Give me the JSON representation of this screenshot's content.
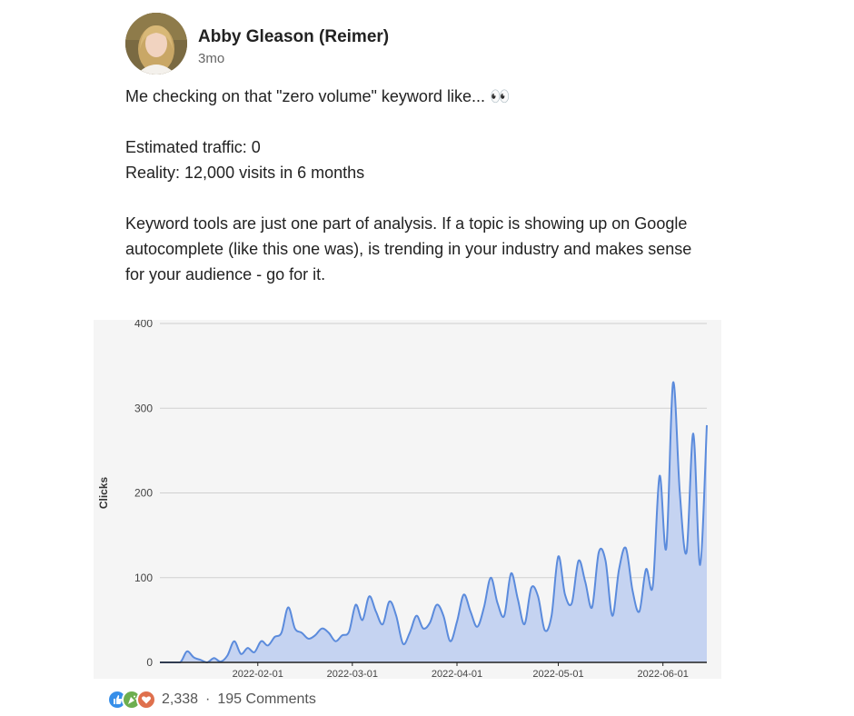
{
  "post": {
    "author": "Abby Gleason (Reimer)",
    "time": "3mo",
    "lines": [
      "Me checking on that \"zero volume\" keyword like... 👀",
      "Estimated traffic: 0",
      "Reality: 12,000 visits in 6 months",
      "Keyword tools are just one part of analysis. If a topic is showing up on Google autocomplete (like this one was), is trending in your industry and makes sense for your audience - go for it."
    ]
  },
  "footer": {
    "reaction_icons": [
      "like-icon",
      "celebrate-icon",
      "love-icon"
    ],
    "reaction_count": "2,338",
    "separator": "·",
    "comments": "195 Comments"
  },
  "chart_data": {
    "type": "area",
    "ylabel": "Clicks",
    "ylim": [
      0,
      400
    ],
    "yticks": [
      0,
      100,
      200,
      300,
      400
    ],
    "xlim": [
      "2022-01-03",
      "2022-06-14"
    ],
    "xticks": [
      "2022-02-01",
      "2022-03-01",
      "2022-04-01",
      "2022-05-01",
      "2022-06-01"
    ],
    "colors": {
      "line": "#5b8bdc",
      "fill": "#c5d3f1",
      "grid": "#d0d0d0"
    },
    "series": [
      {
        "values": [
          [
            "2022-01-03",
            0
          ],
          [
            "2022-01-06",
            0
          ],
          [
            "2022-01-09",
            0
          ],
          [
            "2022-01-11",
            13
          ],
          [
            "2022-01-13",
            6
          ],
          [
            "2022-01-15",
            3
          ],
          [
            "2022-01-17",
            0
          ],
          [
            "2022-01-19",
            5
          ],
          [
            "2022-01-21",
            1
          ],
          [
            "2022-01-23",
            8
          ],
          [
            "2022-01-25",
            25
          ],
          [
            "2022-01-27",
            10
          ],
          [
            "2022-01-29",
            17
          ],
          [
            "2022-01-31",
            12
          ],
          [
            "2022-02-02",
            25
          ],
          [
            "2022-02-04",
            20
          ],
          [
            "2022-02-06",
            30
          ],
          [
            "2022-02-08",
            35
          ],
          [
            "2022-02-10",
            65
          ],
          [
            "2022-02-12",
            40
          ],
          [
            "2022-02-14",
            35
          ],
          [
            "2022-02-16",
            28
          ],
          [
            "2022-02-18",
            32
          ],
          [
            "2022-02-20",
            40
          ],
          [
            "2022-02-22",
            35
          ],
          [
            "2022-02-24",
            25
          ],
          [
            "2022-02-26",
            32
          ],
          [
            "2022-02-28",
            36
          ],
          [
            "2022-03-02",
            68
          ],
          [
            "2022-03-04",
            50
          ],
          [
            "2022-03-06",
            78
          ],
          [
            "2022-03-08",
            60
          ],
          [
            "2022-03-10",
            45
          ],
          [
            "2022-03-12",
            72
          ],
          [
            "2022-03-14",
            55
          ],
          [
            "2022-03-16",
            22
          ],
          [
            "2022-03-18",
            35
          ],
          [
            "2022-03-20",
            55
          ],
          [
            "2022-03-22",
            40
          ],
          [
            "2022-03-24",
            47
          ],
          [
            "2022-03-26",
            68
          ],
          [
            "2022-03-28",
            55
          ],
          [
            "2022-03-30",
            25
          ],
          [
            "2022-04-01",
            48
          ],
          [
            "2022-04-03",
            80
          ],
          [
            "2022-04-05",
            60
          ],
          [
            "2022-04-07",
            42
          ],
          [
            "2022-04-09",
            65
          ],
          [
            "2022-04-11",
            100
          ],
          [
            "2022-04-13",
            70
          ],
          [
            "2022-04-15",
            55
          ],
          [
            "2022-04-17",
            105
          ],
          [
            "2022-04-19",
            75
          ],
          [
            "2022-04-21",
            45
          ],
          [
            "2022-04-23",
            88
          ],
          [
            "2022-04-25",
            78
          ],
          [
            "2022-04-27",
            38
          ],
          [
            "2022-04-29",
            55
          ],
          [
            "2022-05-01",
            125
          ],
          [
            "2022-05-03",
            80
          ],
          [
            "2022-05-05",
            70
          ],
          [
            "2022-05-07",
            120
          ],
          [
            "2022-05-09",
            95
          ],
          [
            "2022-05-11",
            65
          ],
          [
            "2022-05-13",
            130
          ],
          [
            "2022-05-15",
            120
          ],
          [
            "2022-05-17",
            55
          ],
          [
            "2022-05-19",
            110
          ],
          [
            "2022-05-21",
            135
          ],
          [
            "2022-05-23",
            85
          ],
          [
            "2022-05-25",
            60
          ],
          [
            "2022-05-27",
            110
          ],
          [
            "2022-05-29",
            90
          ],
          [
            "2022-05-31",
            220
          ],
          [
            "2022-06-02",
            135
          ],
          [
            "2022-06-04",
            330
          ],
          [
            "2022-06-06",
            200
          ],
          [
            "2022-06-08",
            130
          ],
          [
            "2022-06-10",
            270
          ],
          [
            "2022-06-12",
            115
          ],
          [
            "2022-06-14",
            280
          ]
        ]
      }
    ]
  }
}
